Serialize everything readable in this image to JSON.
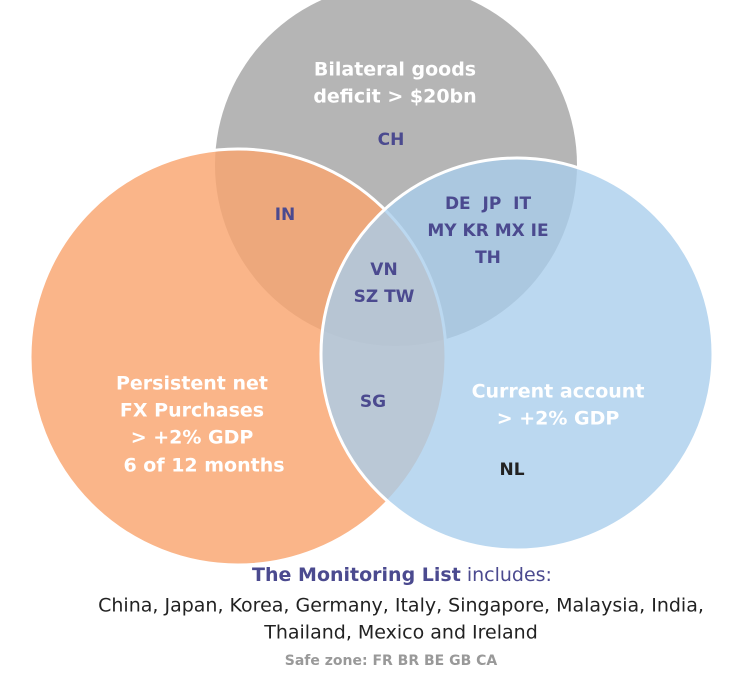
{
  "sets": [
    {
      "label_lines": [
        "Bilateral goods",
        "deficit > $20bn"
      ]
    },
    {
      "label_lines": [
        "Persistent net",
        "FX Purchases",
        "> +2% GDP",
        "6 of 12 months"
      ]
    },
    {
      "label_lines": [
        "Current account",
        "> +2% GDP"
      ]
    }
  ],
  "regions": [
    {
      "lines": [
        "CH"
      ]
    },
    {
      "lines": [
        "IN"
      ]
    },
    {
      "lines": [
        "DE  JP  IT",
        "MY KR MX IE",
        "TH"
      ]
    },
    {
      "lines": [
        "VN",
        "SZ TW"
      ]
    },
    {
      "lines": [
        "SG"
      ]
    },
    {
      "lines": [
        "NL"
      ]
    }
  ],
  "footer": {
    "monitoring_title": "The Monitoring List",
    "monitoring_suffix": "includes:",
    "countries_lines": [
      "China, Japan, Korea, Germany, Italy, Singapore, Malaysia, India,",
      "Thailand, Mexico and Ireland"
    ],
    "safe_zone": "Safe zone: FR BR BE GB CA"
  }
}
